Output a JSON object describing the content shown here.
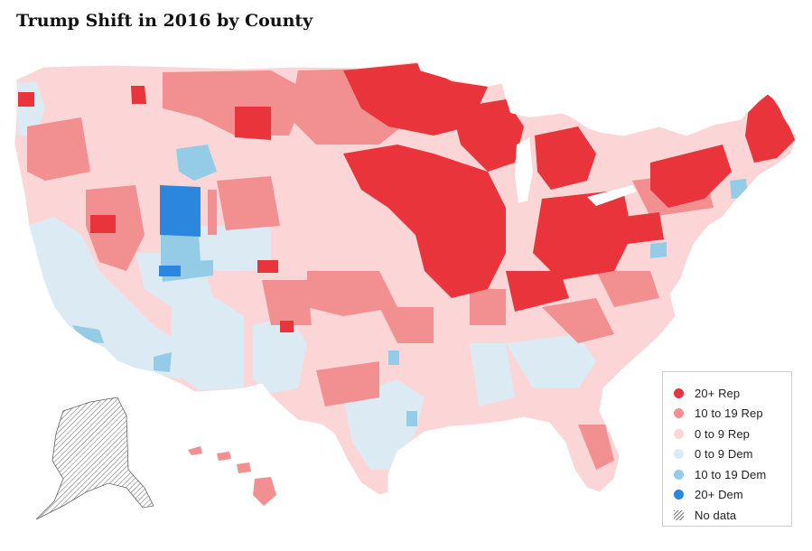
{
  "title": "Trump Shift in 2016 by County",
  "colors": {
    "rep20": "#e8343a",
    "rep10": "#f28f91",
    "rep0": "#fcd5d6",
    "dem0": "#dceaf4",
    "dem10": "#94cbe6",
    "dem20": "#2b86de",
    "nodata": "#777777"
  },
  "legend": {
    "items": [
      {
        "label": "20+ Rep",
        "color": "#e8343a"
      },
      {
        "label": "10 to 19 Rep",
        "color": "#f28f91"
      },
      {
        "label": "0 to 9 Rep",
        "color": "#fcd5d6"
      },
      {
        "label": "0 to 9 Dem",
        "color": "#dceaf4"
      },
      {
        "label": "10 to 19 Dem",
        "color": "#94cbe6"
      },
      {
        "label": "20+ Dem",
        "color": "#2b86de"
      },
      {
        "label": "No data",
        "color": "hatch"
      }
    ]
  }
}
